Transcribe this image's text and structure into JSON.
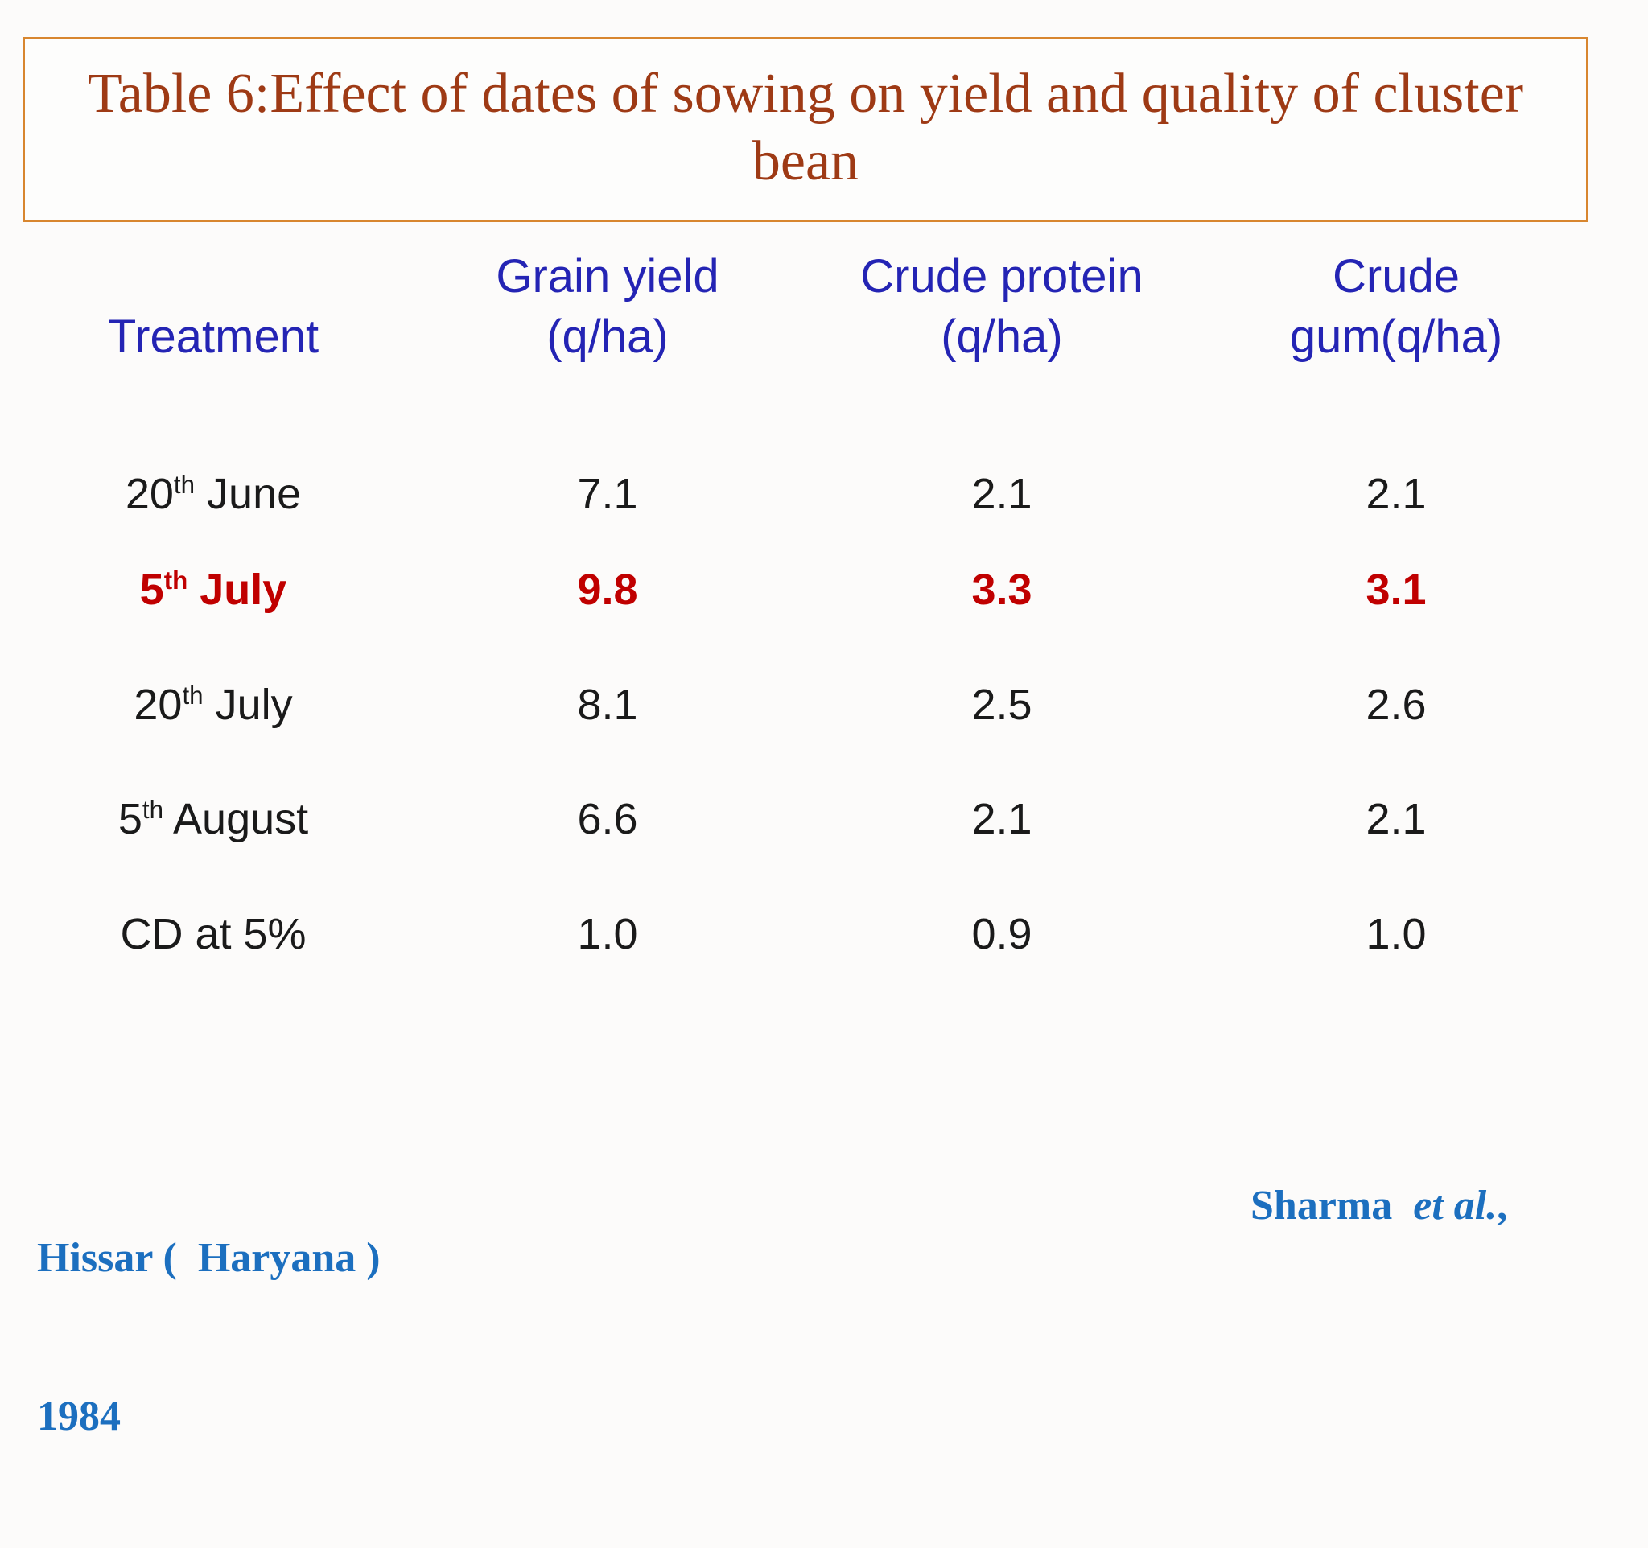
{
  "slide": {
    "title": "Table 6:Effect of dates of sowing on yield and quality of cluster bean"
  },
  "table": {
    "headers": [
      {
        "lines": [
          "Treatment"
        ]
      },
      {
        "lines": [
          "Grain yield",
          "(q/ha)"
        ]
      },
      {
        "lines": [
          "Crude protein",
          "(q/ha)"
        ]
      },
      {
        "lines": [
          "Crude",
          "gum(q/ha)"
        ]
      }
    ],
    "rows": [
      {
        "t_base": "20",
        "t_sup": "th",
        "t_rest": " June",
        "grain_yield": "7.1",
        "crude_protein": "2.1",
        "crude_gum": "2.1",
        "emphasis": false
      },
      {
        "t_base": "5",
        "t_sup": "th",
        "t_rest": " July",
        "grain_yield": "9.8",
        "crude_protein": "3.3",
        "crude_gum": "3.1",
        "emphasis": true
      },
      {
        "t_base": "20",
        "t_sup": "th",
        "t_rest": " July",
        "grain_yield": "8.1",
        "crude_protein": "2.5",
        "crude_gum": "2.6",
        "emphasis": false
      },
      {
        "t_base": "5",
        "t_sup": "th",
        "t_rest": " August",
        "grain_yield": "6.6",
        "crude_protein": "2.1",
        "crude_gum": "2.1",
        "emphasis": false
      },
      {
        "t_base": "CD at 5%",
        "t_sup": "",
        "t_rest": "",
        "grain_yield": "1.0",
        "crude_protein": "0.9",
        "crude_gum": "1.0",
        "emphasis": false
      }
    ]
  },
  "chart_data": {
    "type": "table",
    "title": "Table 6:Effect of dates of sowing on yield and quality of cluster bean",
    "columns": [
      "Treatment",
      "Grain yield (q/ha)",
      "Crude protein (q/ha)",
      "Crude gum(q/ha)"
    ],
    "rows": [
      [
        "20th June",
        7.1,
        2.1,
        2.1
      ],
      [
        "5th July",
        9.8,
        3.3,
        3.1
      ],
      [
        "20th July",
        8.1,
        2.5,
        2.6
      ],
      [
        "5th August",
        6.6,
        2.1,
        2.1
      ],
      [
        "CD at 5%",
        1.0,
        0.9,
        1.0
      ]
    ],
    "highlighted_row": "5th July"
  },
  "footer": {
    "location_line1": "Hissar (  Haryana )",
    "location_line2": "1984",
    "author_name": "Sharma ",
    "author_etal": " et al.",
    "author_suffix": ","
  },
  "colors": {
    "title_text": "#9e3a15",
    "title_border": "#d8862f",
    "header_blue": "#2424b4",
    "emphasis_red": "#c00000",
    "body_text": "#1a1a1a",
    "footer_blue": "#1c6fbf"
  }
}
